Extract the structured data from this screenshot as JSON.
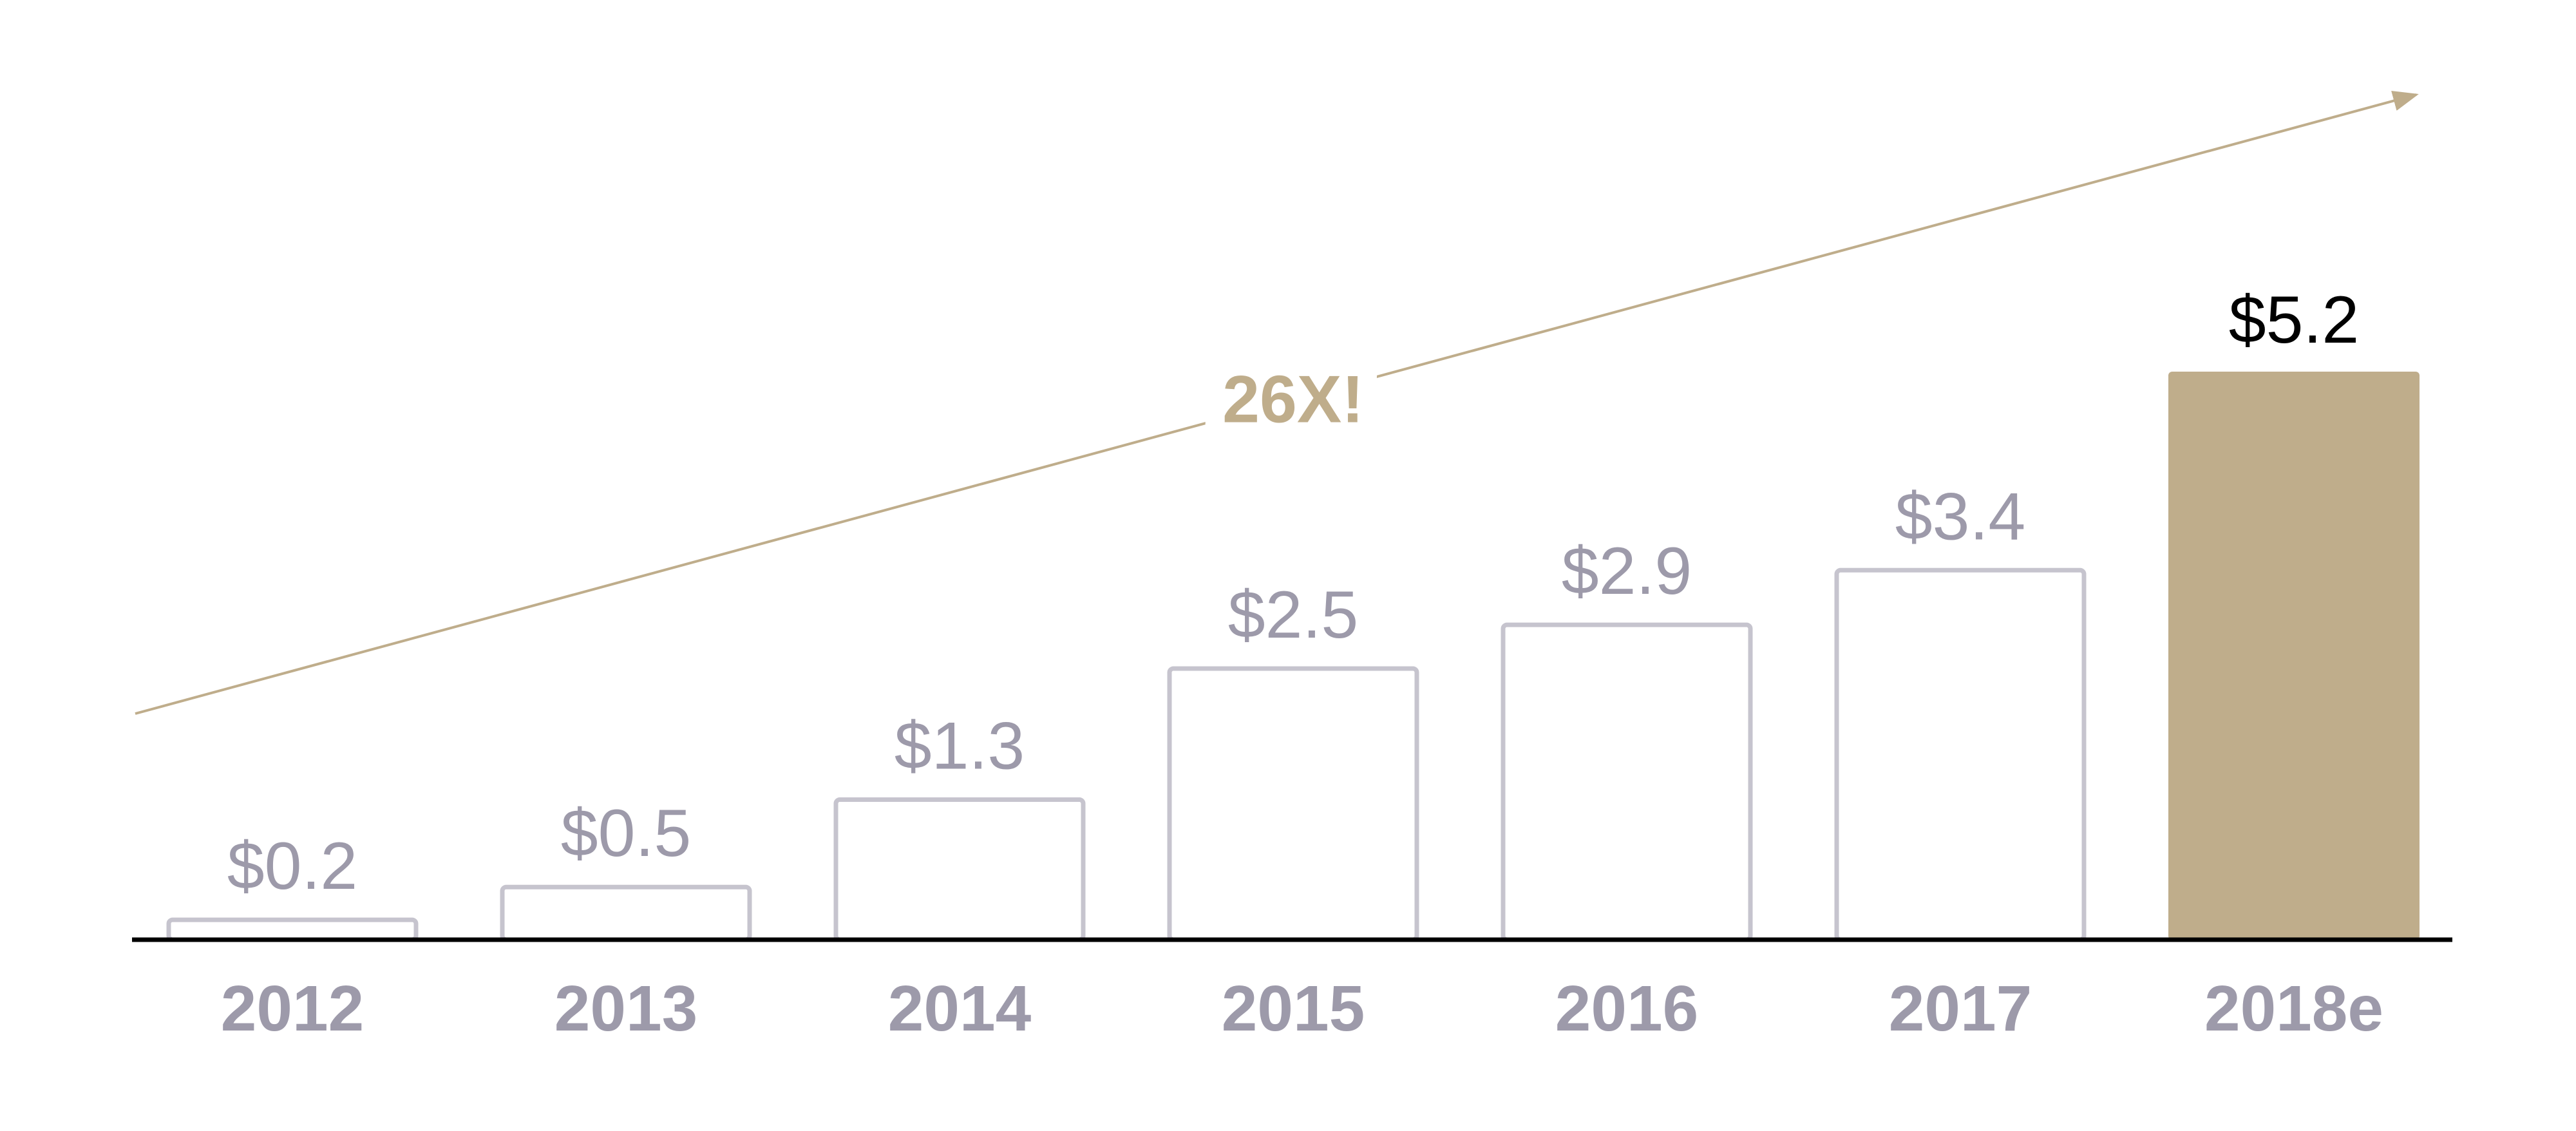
{
  "chart_data": {
    "type": "bar",
    "categories": [
      "2012",
      "2013",
      "2014",
      "2015",
      "2016",
      "2017",
      "2018e"
    ],
    "values": [
      0.2,
      0.5,
      1.3,
      2.5,
      2.9,
      3.4,
      5.2
    ],
    "value_labels": [
      "$0.2",
      "$0.5",
      "$1.3",
      "$2.5",
      "$2.9",
      "$3.4",
      "$5.2"
    ],
    "colors": [
      "#c6c4ce",
      "#c6c4ce",
      "#c6c4ce",
      "#c6c4ce",
      "#c6c4ce",
      "#c6c4ce",
      "#bfad8b"
    ],
    "filled": [
      false,
      false,
      false,
      false,
      false,
      false,
      true
    ],
    "annotation": "26X!"
  }
}
